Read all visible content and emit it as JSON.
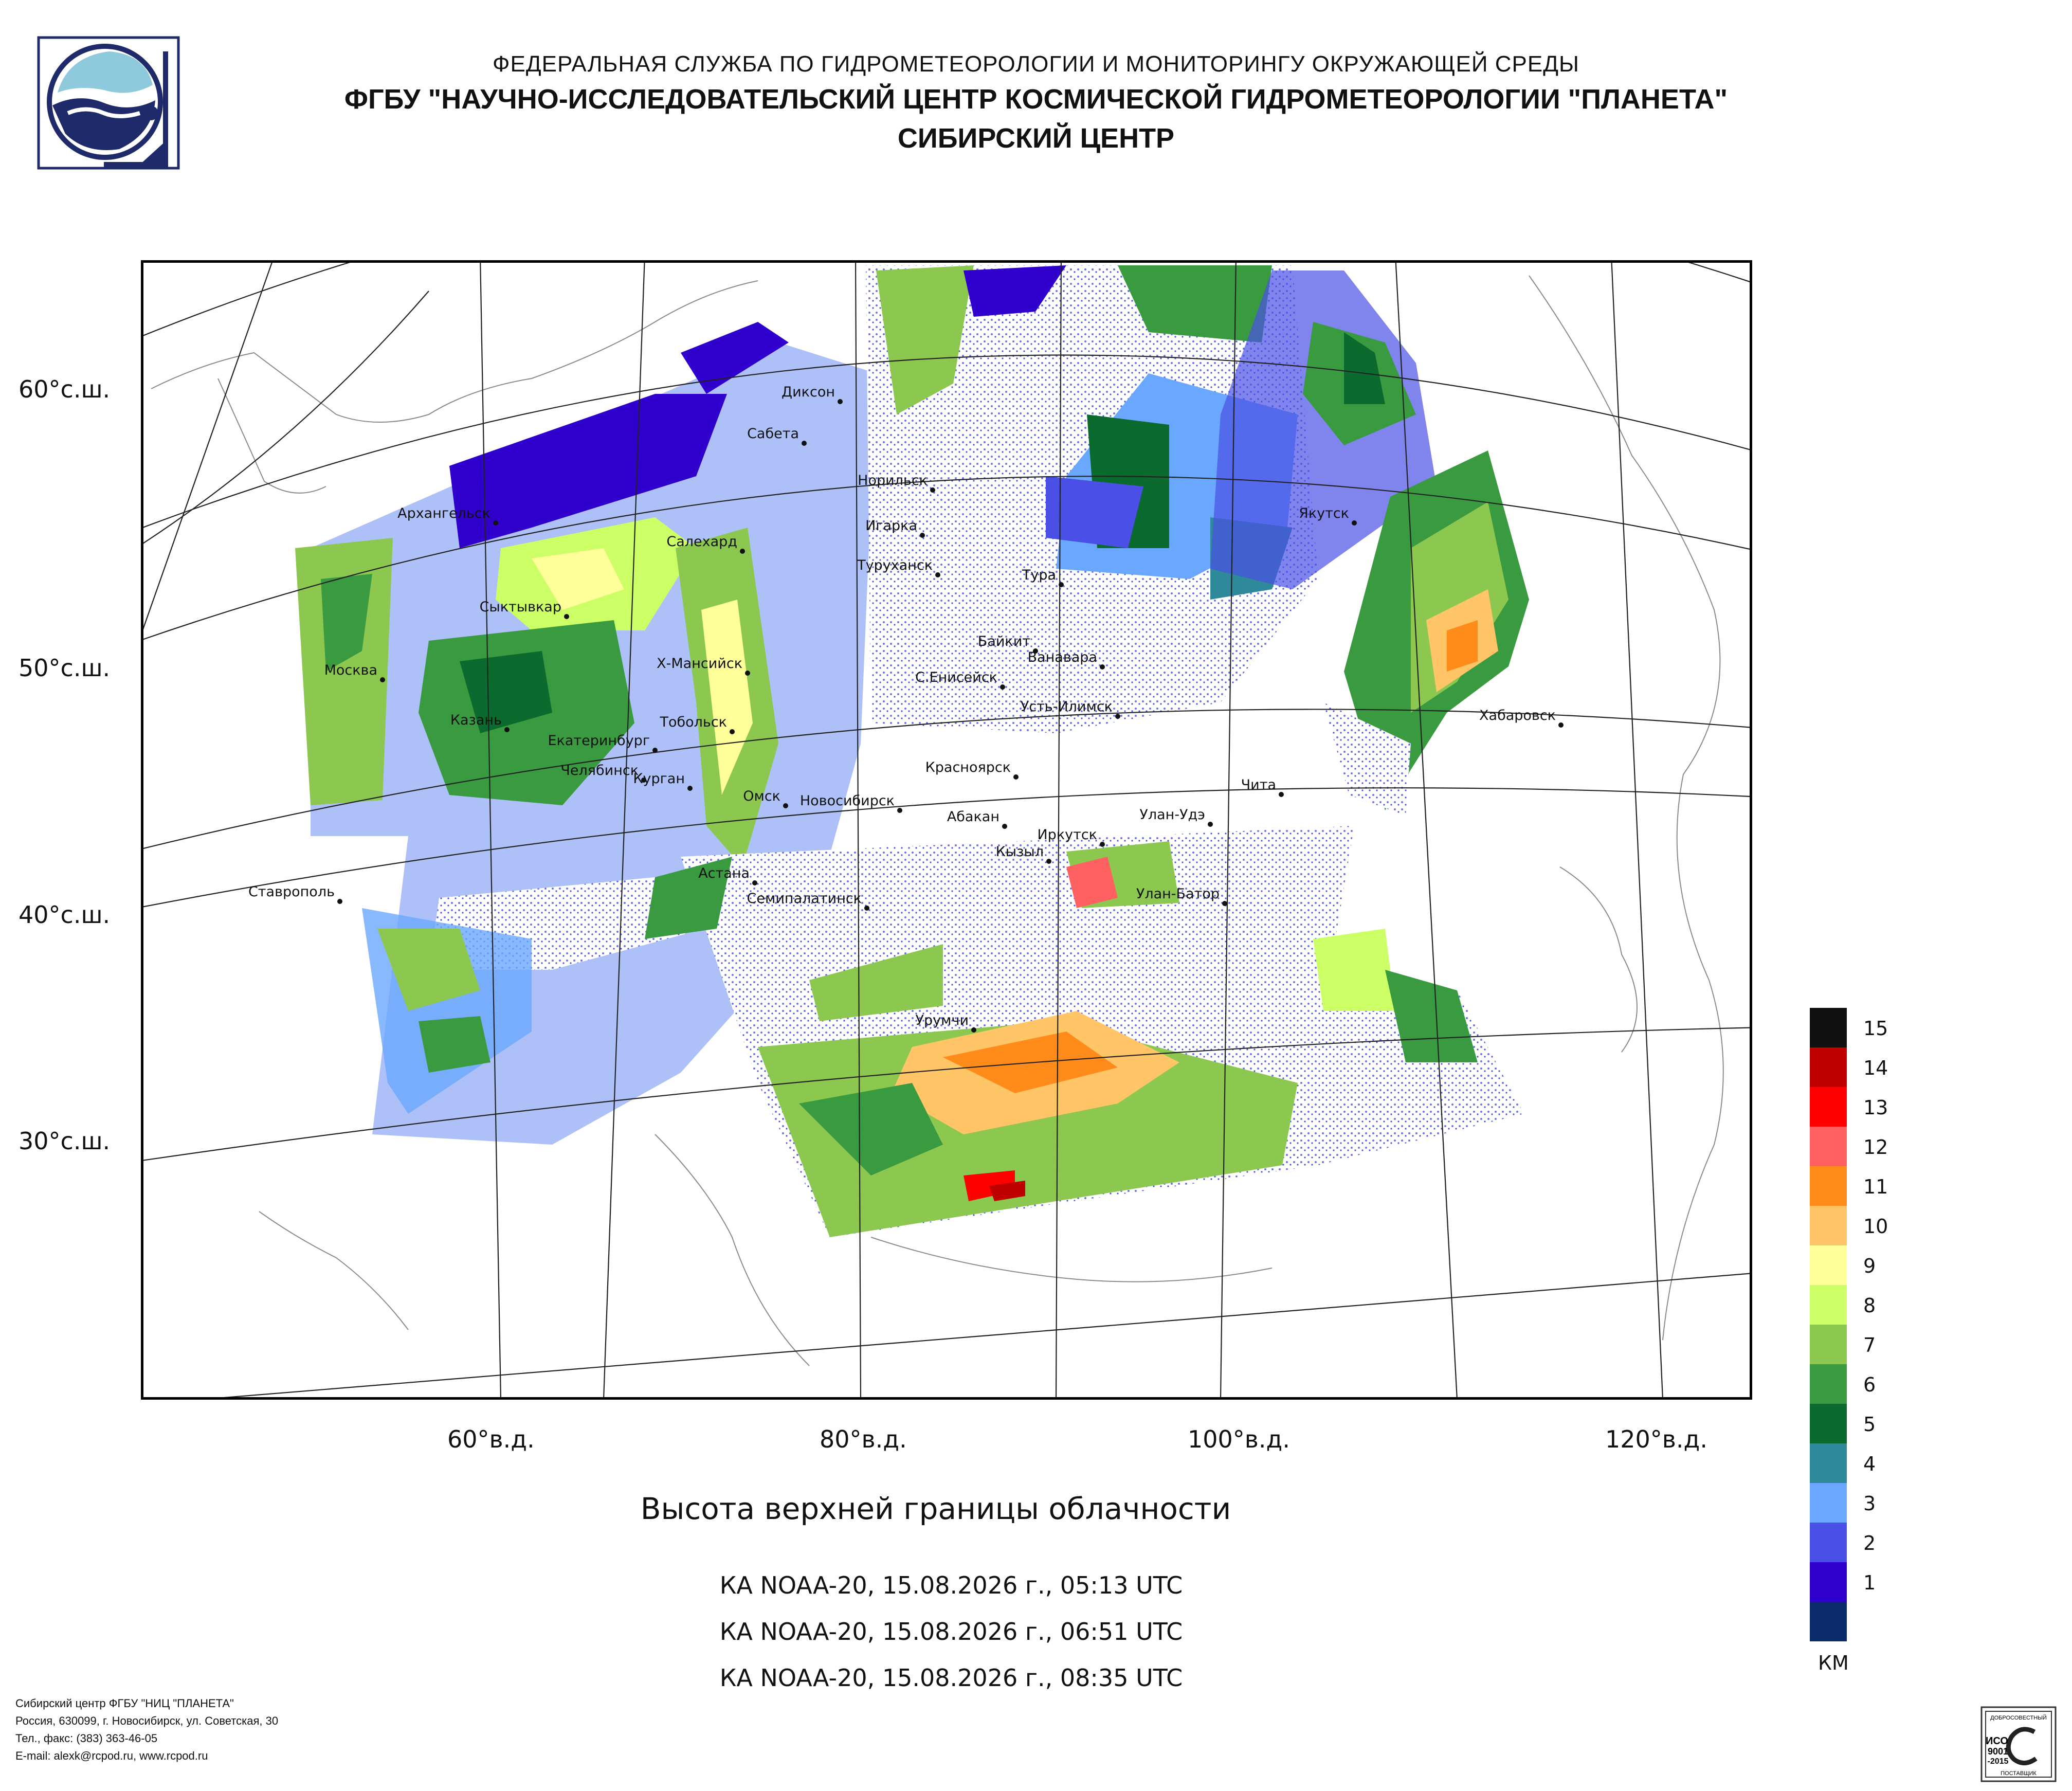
{
  "header": {
    "line1": "ФЕДЕРАЛЬНАЯ СЛУЖБА ПО ГИДРОМЕТЕОРОЛОГИИ И МОНИТОРИНГУ ОКРУЖАЮЩЕЙ СРЕДЫ",
    "line2": "ФГБУ \"НАУЧНО-ИССЛЕДОВАТЕЛЬСКИЙ ЦЕНТР КОСМИЧЕСКОЙ ГИДРОМЕТЕОРОЛОГИИ \"ПЛАНЕТА\"",
    "line3": "СИБИРСКИЙ ЦЕНТР"
  },
  "map": {
    "lat_labels": [
      "60°с.ш.",
      "50°с.ш.",
      "40°с.ш.",
      "30°с.ш."
    ],
    "lon_labels": [
      "60°в.д.",
      "80°в.д.",
      "100°в.д.",
      "120°в.д."
    ],
    "cities": [
      {
        "name": "Диксон"
      },
      {
        "name": "Сабета"
      },
      {
        "name": "Норильск"
      },
      {
        "name": "Игарка"
      },
      {
        "name": "Архангельск"
      },
      {
        "name": "Салехард"
      },
      {
        "name": "Туруханск"
      },
      {
        "name": "Тура"
      },
      {
        "name": "Якутск"
      },
      {
        "name": "Сыктывкар"
      },
      {
        "name": "Байкит"
      },
      {
        "name": "Ванавара"
      },
      {
        "name": "Москва"
      },
      {
        "name": "Х-Мансийск"
      },
      {
        "name": "С.Енисейск"
      },
      {
        "name": "Усть-Илимск"
      },
      {
        "name": "Хабаровск"
      },
      {
        "name": "Казань"
      },
      {
        "name": "Тобольск"
      },
      {
        "name": "Екатеринбург"
      },
      {
        "name": "Челябинск"
      },
      {
        "name": "Курган"
      },
      {
        "name": "Красноярск"
      },
      {
        "name": "Чита"
      },
      {
        "name": "Омск"
      },
      {
        "name": "Новосибирск"
      },
      {
        "name": "Абакан"
      },
      {
        "name": "Улан-Удэ"
      },
      {
        "name": "Иркутск"
      },
      {
        "name": "Кызыл"
      },
      {
        "name": "Астана"
      },
      {
        "name": "Ставрополь"
      },
      {
        "name": "Семипалатинск"
      },
      {
        "name": "Улан-Батор"
      },
      {
        "name": "Урумчи"
      }
    ]
  },
  "legend": {
    "unit": "КМ",
    "levels": [
      {
        "label": "15",
        "color": "#111111"
      },
      {
        "label": "14",
        "color": "#c00000"
      },
      {
        "label": "13",
        "color": "#ff0000"
      },
      {
        "label": "12",
        "color": "#ff6060"
      },
      {
        "label": "11",
        "color": "#ff8c1a"
      },
      {
        "label": "10",
        "color": "#ffc566"
      },
      {
        "label": "9",
        "color": "#ffff99"
      },
      {
        "label": "8",
        "color": "#ccff66"
      },
      {
        "label": "7",
        "color": "#8cc850"
      },
      {
        "label": "6",
        "color": "#3a9a40"
      },
      {
        "label": "5",
        "color": "#0b6b2e"
      },
      {
        "label": "4",
        "color": "#2e8a9a"
      },
      {
        "label": "3",
        "color": "#6aa8ff"
      },
      {
        "label": "2",
        "color": "#4a50e6"
      },
      {
        "label": "1",
        "color": "#3000cc"
      },
      {
        "label": "",
        "color": "#0a2a6a"
      }
    ]
  },
  "title": "Высота верхней границы облачности",
  "passes": [
    "КА NOAA-20, 15.08.2026 г., 05:13 UTC",
    "КА NOAA-20, 15.08.2026 г., 06:51 UTC",
    "КА NOAA-20, 15.08.2026 г., 08:35 UTC"
  ],
  "footer": {
    "org": "Сибирский центр ФГБУ \"НИЦ \"ПЛАНЕТА\"",
    "address": "Россия, 630099, г. Новосибирск, ул. Советская, 30",
    "phone": "Тел., факс: (383) 363-46-05",
    "email": "E-mail: alexk@rcpod.ru, www.rcpod.ru"
  },
  "cert": {
    "top": "ДОБРОСОВЕСТНЫЙ",
    "iso": "ИСО",
    "num": "9001",
    "year": "-2015",
    "bottom": "ПОСТАВЩИК"
  }
}
